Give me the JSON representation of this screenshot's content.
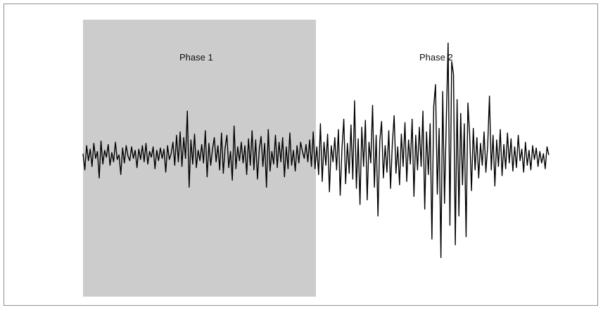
{
  "chart_data": {
    "type": "line",
    "title": "",
    "xlabel": "",
    "ylabel": "",
    "grid": false,
    "legend": "none",
    "colors": {
      "phase_1_shade": "#cccccc",
      "phase_2_shade": "#ffffff",
      "signal": "#000000",
      "frame": "#8f8f8f"
    },
    "phases": [
      {
        "label": "Phase 1",
        "x_start": 0,
        "x_end": 0.5,
        "shaded": true
      },
      {
        "label": "Phase 2",
        "x_start": 0.5,
        "x_end": 1,
        "shaded": false
      }
    ],
    "xlim": [
      0,
      1
    ],
    "ylim": [
      -1,
      1
    ],
    "x_count": 260,
    "series": [
      {
        "values": [
          0.02,
          -0.12,
          0.09,
          -0.04,
          0.06,
          -0.09,
          0.11,
          -0.02,
          0.04,
          -0.19,
          0.13,
          -0.07,
          0.05,
          -0.01,
          0.1,
          -0.08,
          0.03,
          -0.05,
          0.12,
          -0.03,
          0.01,
          -0.16,
          0.07,
          -0.06,
          0.09,
          0.0,
          -0.04,
          0.08,
          -0.02,
          0.05,
          -0.1,
          0.06,
          -0.03,
          0.09,
          -0.05,
          0.11,
          -0.07,
          0.04,
          -0.01,
          0.08,
          -0.11,
          0.05,
          -0.04,
          0.07,
          -0.02,
          0.06,
          -0.14,
          0.09,
          -0.03,
          0.02,
          0.12,
          -0.08,
          0.18,
          -0.05,
          0.21,
          -0.09,
          0.16,
          -0.02,
          0.39,
          -0.27,
          0.14,
          -0.07,
          0.19,
          -0.1,
          0.05,
          -0.04,
          0.1,
          -0.06,
          0.22,
          -0.18,
          0.11,
          -0.08,
          0.06,
          0.16,
          -0.05,
          0.09,
          -0.12,
          0.2,
          -0.15,
          0.07,
          0.18,
          -0.1,
          0.04,
          -0.21,
          0.26,
          -0.11,
          0.08,
          -0.04,
          0.12,
          -0.06,
          0.09,
          -0.16,
          0.15,
          -0.08,
          0.22,
          -0.12,
          0.14,
          -0.2,
          0.06,
          0.17,
          -0.09,
          0.11,
          -0.27,
          0.23,
          -0.13,
          0.04,
          -0.07,
          0.18,
          -0.1,
          0.12,
          -0.05,
          0.16,
          -0.18,
          0.08,
          -0.11,
          0.2,
          -0.08,
          0.05,
          -0.13,
          0.09,
          -0.06,
          0.12,
          0.04,
          -0.02,
          0.1,
          -0.05,
          0.14,
          -0.09,
          0.21,
          -0.11,
          0.08,
          -0.16,
          0.28,
          -0.22,
          0.12,
          -0.08,
          0.19,
          -0.31,
          0.09,
          -0.05,
          0.16,
          -0.12,
          0.23,
          -0.34,
          0.07,
          0.32,
          -0.24,
          0.11,
          -0.15,
          0.27,
          -0.2,
          0.48,
          -0.28,
          0.15,
          -0.42,
          0.25,
          -0.09,
          0.31,
          -0.38,
          0.12,
          -0.06,
          0.44,
          -0.27,
          0.18,
          -0.52,
          0.13,
          0.3,
          -0.19,
          0.09,
          -0.14,
          0.22,
          -0.28,
          0.11,
          0.35,
          -0.15,
          0.08,
          -0.25,
          0.19,
          -0.09,
          0.29,
          -0.22,
          0.14,
          -0.07,
          0.32,
          -0.35,
          0.18,
          -0.12,
          0.25,
          -0.09,
          0.39,
          -0.46,
          0.21,
          -0.16,
          0.28,
          -0.72,
          0.43,
          0.62,
          -0.33,
          0.24,
          -0.88,
          0.56,
          -0.41,
          0.31,
          0.98,
          -0.6,
          0.82,
          0.71,
          -0.77,
          0.49,
          -0.52,
          0.37,
          -0.25,
          0.28,
          -0.7,
          0.46,
          0.18,
          -0.3,
          0.24,
          -0.12,
          0.16,
          -0.19,
          0.11,
          -0.08,
          0.21,
          -0.14,
          0.09,
          0.52,
          -0.12,
          0.18,
          -0.26,
          0.14,
          -0.09,
          0.23,
          -0.17,
          0.1,
          -0.11,
          0.2,
          -0.06,
          0.15,
          -0.13,
          0.08,
          -0.1,
          0.18,
          -0.04,
          0.06,
          -0.14,
          0.12,
          -0.08,
          0.05,
          -0.12,
          0.09,
          -0.03,
          0.07,
          -0.09,
          0.04,
          -0.06,
          0.02,
          -0.11,
          0.08,
          0.01
        ]
      }
    ]
  }
}
